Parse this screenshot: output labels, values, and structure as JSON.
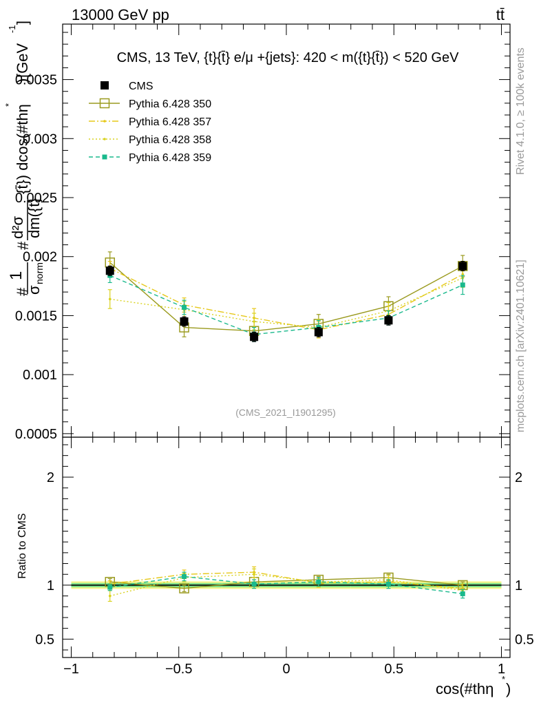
{
  "header": {
    "energy_label": "13000 GeV pp",
    "process_label": "tt̄"
  },
  "side": {
    "rivet_label": "Rivet 4.1.0, ≥ 100k events",
    "source_label": "mcplots.cern.ch [arXiv:2401.10621]"
  },
  "chart_data": [
    {
      "type": "line",
      "title": "CMS, 13 TeV, {t}{t̄} e/μ +{jets}: 420 < m({t}{t̄}) < 520 GeV",
      "watermark": "(CMS_2021_I1901295)",
      "ylabel_parts": [
        "#",
        "1",
        "σ",
        "norm",
        "#",
        "d²σ",
        "dm({t}",
        "{t̄}) dcos(#thη",
        "*",
        ")",
        "[GeV",
        "-1",
        "]"
      ],
      "xlim": [
        -1.04,
        1.04
      ],
      "ylim": [
        0.00047,
        0.00397
      ],
      "yticks": [
        0.0005,
        0.001,
        0.0015,
        0.002,
        0.0025,
        0.003,
        0.0035
      ],
      "ytick_labels": [
        "0.0005",
        "0.001",
        "0.0015",
        "0.002",
        "0.0025",
        "0.003",
        "0.0035"
      ],
      "x": [
        -0.82,
        -0.475,
        -0.15,
        0.15,
        0.475,
        0.82
      ],
      "xedges": [
        -1.0,
        -0.64,
        -0.3,
        0.0,
        0.3,
        0.64,
        1.0
      ],
      "series": [
        {
          "name": "CMS",
          "color": "#000000",
          "style": "data",
          "marker": "square-filled",
          "values": [
            0.00188,
            0.00145,
            0.00132,
            0.00136,
            0.00146,
            0.00192
          ],
          "errors": [
            4e-05,
            4e-05,
            4e-05,
            4e-05,
            4e-05,
            4e-05
          ]
        },
        {
          "name": "Pythia 6.428 350",
          "color": "#9a9a1e",
          "style": "solid",
          "marker": "square-open",
          "values": [
            0.00195,
            0.0014,
            0.00137,
            0.00143,
            0.00158,
            0.00192
          ],
          "errors": [
            9e-05,
            8e-05,
            8e-05,
            8e-05,
            8e-05,
            9e-05
          ]
        },
        {
          "name": "Pythia 6.428 357",
          "color": "#e6c819",
          "style": "dashdot",
          "marker": "dot",
          "values": [
            0.0019,
            0.00159,
            0.00148,
            0.00138,
            0.00151,
            0.00185
          ],
          "errors": [
            6e-05,
            6e-05,
            8e-05,
            7e-05,
            7e-05,
            8e-05
          ]
        },
        {
          "name": "Pythia 6.428 358",
          "color": "#d9d21e",
          "style": "dotted",
          "marker": "dot",
          "values": [
            0.00164,
            0.00155,
            0.00145,
            0.0014,
            0.00154,
            0.00182
          ],
          "errors": [
            8e-05,
            7e-05,
            7e-05,
            7e-05,
            7e-05,
            8e-05
          ]
        },
        {
          "name": "Pythia 6.428 359",
          "color": "#19b98c",
          "style": "dashed",
          "marker": "square-filled-small",
          "values": [
            0.00184,
            0.00157,
            0.00134,
            0.0014,
            0.00148,
            0.00176
          ],
          "errors": [
            6e-05,
            6e-05,
            6e-05,
            6e-05,
            6e-05,
            8e-05
          ]
        }
      ]
    },
    {
      "type": "line",
      "title": "",
      "ylabel": "Ratio to CMS",
      "xlabel": "cos(#thη",
      "xlabel_sup": "*",
      "xlabel_close": ")",
      "xlim": [
        -1.04,
        1.04
      ],
      "ylim": [
        0.33,
        2.37
      ],
      "yticks": [
        0.5,
        1,
        2
      ],
      "ytick_labels": [
        "0.5",
        "1",
        "2"
      ],
      "xticks": [
        -1,
        -0.5,
        0,
        0.5,
        1
      ],
      "xtick_labels": [
        "−1",
        "−0.5",
        "0",
        "0.5",
        "1"
      ],
      "x": [
        -0.82,
        -0.475,
        -0.15,
        0.15,
        0.475,
        0.82
      ],
      "xedges": [
        -1.0,
        -0.64,
        -0.3,
        0.0,
        0.3,
        0.64,
        1.0
      ],
      "band": {
        "inner": [
          0.02,
          0.02,
          0.02,
          0.02,
          0.02,
          0.02
        ],
        "outer": [
          0.035,
          0.035,
          0.035,
          0.035,
          0.035,
          0.035
        ],
        "inner_color": "#7fe08a",
        "outer_color": "#f5f58c"
      },
      "series": [
        {
          "name": "Pythia 6.428 350",
          "color": "#9a9a1e",
          "style": "solid",
          "marker": "square-open",
          "values": [
            1.03,
            0.97,
            1.03,
            1.05,
            1.07,
            1.0
          ],
          "errors": [
            0.03,
            0.03,
            0.04,
            0.03,
            0.03,
            0.03
          ]
        },
        {
          "name": "Pythia 6.428 357",
          "color": "#e6c819",
          "style": "dashdot",
          "marker": "dot",
          "values": [
            1.01,
            1.1,
            1.12,
            1.02,
            1.03,
            0.97
          ],
          "errors": [
            0.03,
            0.04,
            0.05,
            0.04,
            0.04,
            0.04
          ]
        },
        {
          "name": "Pythia 6.428 358",
          "color": "#d9d21e",
          "style": "dotted",
          "marker": "dot",
          "values": [
            0.9,
            1.07,
            1.1,
            1.03,
            1.05,
            0.95
          ],
          "errors": [
            0.05,
            0.04,
            0.05,
            0.04,
            0.04,
            0.04
          ]
        },
        {
          "name": "Pythia 6.428 359",
          "color": "#19b98c",
          "style": "dashed",
          "marker": "square-filled-small",
          "values": [
            0.98,
            1.08,
            1.01,
            1.03,
            1.01,
            0.92
          ],
          "errors": [
            0.03,
            0.04,
            0.04,
            0.04,
            0.04,
            0.04
          ]
        }
      ]
    }
  ]
}
